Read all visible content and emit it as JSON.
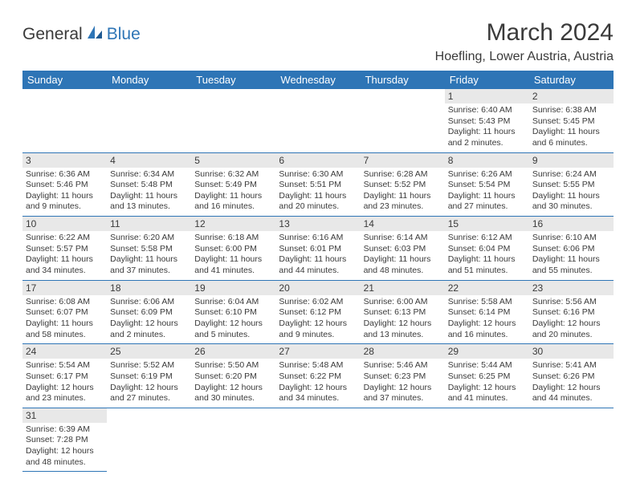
{
  "logo": {
    "text1": "General",
    "text2": "Blue"
  },
  "title": "March 2024",
  "location": "Hoefling, Lower Austria, Austria",
  "colors": {
    "header_bg": "#2e75b6",
    "header_text": "#ffffff",
    "daynum_bg": "#e8e8e8",
    "text": "#3a3a3a",
    "rule": "#2e75b6",
    "page_bg": "#ffffff"
  },
  "daysOfWeek": [
    "Sunday",
    "Monday",
    "Tuesday",
    "Wednesday",
    "Thursday",
    "Friday",
    "Saturday"
  ],
  "weeks": [
    [
      null,
      null,
      null,
      null,
      null,
      {
        "n": "1",
        "sr": "Sunrise: 6:40 AM",
        "ss": "Sunset: 5:43 PM",
        "d1": "Daylight: 11 hours",
        "d2": "and 2 minutes."
      },
      {
        "n": "2",
        "sr": "Sunrise: 6:38 AM",
        "ss": "Sunset: 5:45 PM",
        "d1": "Daylight: 11 hours",
        "d2": "and 6 minutes."
      }
    ],
    [
      {
        "n": "3",
        "sr": "Sunrise: 6:36 AM",
        "ss": "Sunset: 5:46 PM",
        "d1": "Daylight: 11 hours",
        "d2": "and 9 minutes."
      },
      {
        "n": "4",
        "sr": "Sunrise: 6:34 AM",
        "ss": "Sunset: 5:48 PM",
        "d1": "Daylight: 11 hours",
        "d2": "and 13 minutes."
      },
      {
        "n": "5",
        "sr": "Sunrise: 6:32 AM",
        "ss": "Sunset: 5:49 PM",
        "d1": "Daylight: 11 hours",
        "d2": "and 16 minutes."
      },
      {
        "n": "6",
        "sr": "Sunrise: 6:30 AM",
        "ss": "Sunset: 5:51 PM",
        "d1": "Daylight: 11 hours",
        "d2": "and 20 minutes."
      },
      {
        "n": "7",
        "sr": "Sunrise: 6:28 AM",
        "ss": "Sunset: 5:52 PM",
        "d1": "Daylight: 11 hours",
        "d2": "and 23 minutes."
      },
      {
        "n": "8",
        "sr": "Sunrise: 6:26 AM",
        "ss": "Sunset: 5:54 PM",
        "d1": "Daylight: 11 hours",
        "d2": "and 27 minutes."
      },
      {
        "n": "9",
        "sr": "Sunrise: 6:24 AM",
        "ss": "Sunset: 5:55 PM",
        "d1": "Daylight: 11 hours",
        "d2": "and 30 minutes."
      }
    ],
    [
      {
        "n": "10",
        "sr": "Sunrise: 6:22 AM",
        "ss": "Sunset: 5:57 PM",
        "d1": "Daylight: 11 hours",
        "d2": "and 34 minutes."
      },
      {
        "n": "11",
        "sr": "Sunrise: 6:20 AM",
        "ss": "Sunset: 5:58 PM",
        "d1": "Daylight: 11 hours",
        "d2": "and 37 minutes."
      },
      {
        "n": "12",
        "sr": "Sunrise: 6:18 AM",
        "ss": "Sunset: 6:00 PM",
        "d1": "Daylight: 11 hours",
        "d2": "and 41 minutes."
      },
      {
        "n": "13",
        "sr": "Sunrise: 6:16 AM",
        "ss": "Sunset: 6:01 PM",
        "d1": "Daylight: 11 hours",
        "d2": "and 44 minutes."
      },
      {
        "n": "14",
        "sr": "Sunrise: 6:14 AM",
        "ss": "Sunset: 6:03 PM",
        "d1": "Daylight: 11 hours",
        "d2": "and 48 minutes."
      },
      {
        "n": "15",
        "sr": "Sunrise: 6:12 AM",
        "ss": "Sunset: 6:04 PM",
        "d1": "Daylight: 11 hours",
        "d2": "and 51 minutes."
      },
      {
        "n": "16",
        "sr": "Sunrise: 6:10 AM",
        "ss": "Sunset: 6:06 PM",
        "d1": "Daylight: 11 hours",
        "d2": "and 55 minutes."
      }
    ],
    [
      {
        "n": "17",
        "sr": "Sunrise: 6:08 AM",
        "ss": "Sunset: 6:07 PM",
        "d1": "Daylight: 11 hours",
        "d2": "and 58 minutes."
      },
      {
        "n": "18",
        "sr": "Sunrise: 6:06 AM",
        "ss": "Sunset: 6:09 PM",
        "d1": "Daylight: 12 hours",
        "d2": "and 2 minutes."
      },
      {
        "n": "19",
        "sr": "Sunrise: 6:04 AM",
        "ss": "Sunset: 6:10 PM",
        "d1": "Daylight: 12 hours",
        "d2": "and 5 minutes."
      },
      {
        "n": "20",
        "sr": "Sunrise: 6:02 AM",
        "ss": "Sunset: 6:12 PM",
        "d1": "Daylight: 12 hours",
        "d2": "and 9 minutes."
      },
      {
        "n": "21",
        "sr": "Sunrise: 6:00 AM",
        "ss": "Sunset: 6:13 PM",
        "d1": "Daylight: 12 hours",
        "d2": "and 13 minutes."
      },
      {
        "n": "22",
        "sr": "Sunrise: 5:58 AM",
        "ss": "Sunset: 6:14 PM",
        "d1": "Daylight: 12 hours",
        "d2": "and 16 minutes."
      },
      {
        "n": "23",
        "sr": "Sunrise: 5:56 AM",
        "ss": "Sunset: 6:16 PM",
        "d1": "Daylight: 12 hours",
        "d2": "and 20 minutes."
      }
    ],
    [
      {
        "n": "24",
        "sr": "Sunrise: 5:54 AM",
        "ss": "Sunset: 6:17 PM",
        "d1": "Daylight: 12 hours",
        "d2": "and 23 minutes."
      },
      {
        "n": "25",
        "sr": "Sunrise: 5:52 AM",
        "ss": "Sunset: 6:19 PM",
        "d1": "Daylight: 12 hours",
        "d2": "and 27 minutes."
      },
      {
        "n": "26",
        "sr": "Sunrise: 5:50 AM",
        "ss": "Sunset: 6:20 PM",
        "d1": "Daylight: 12 hours",
        "d2": "and 30 minutes."
      },
      {
        "n": "27",
        "sr": "Sunrise: 5:48 AM",
        "ss": "Sunset: 6:22 PM",
        "d1": "Daylight: 12 hours",
        "d2": "and 34 minutes."
      },
      {
        "n": "28",
        "sr": "Sunrise: 5:46 AM",
        "ss": "Sunset: 6:23 PM",
        "d1": "Daylight: 12 hours",
        "d2": "and 37 minutes."
      },
      {
        "n": "29",
        "sr": "Sunrise: 5:44 AM",
        "ss": "Sunset: 6:25 PM",
        "d1": "Daylight: 12 hours",
        "d2": "and 41 minutes."
      },
      {
        "n": "30",
        "sr": "Sunrise: 5:41 AM",
        "ss": "Sunset: 6:26 PM",
        "d1": "Daylight: 12 hours",
        "d2": "and 44 minutes."
      }
    ],
    [
      {
        "n": "31",
        "sr": "Sunrise: 6:39 AM",
        "ss": "Sunset: 7:28 PM",
        "d1": "Daylight: 12 hours",
        "d2": "and 48 minutes."
      },
      null,
      null,
      null,
      null,
      null,
      null
    ]
  ]
}
